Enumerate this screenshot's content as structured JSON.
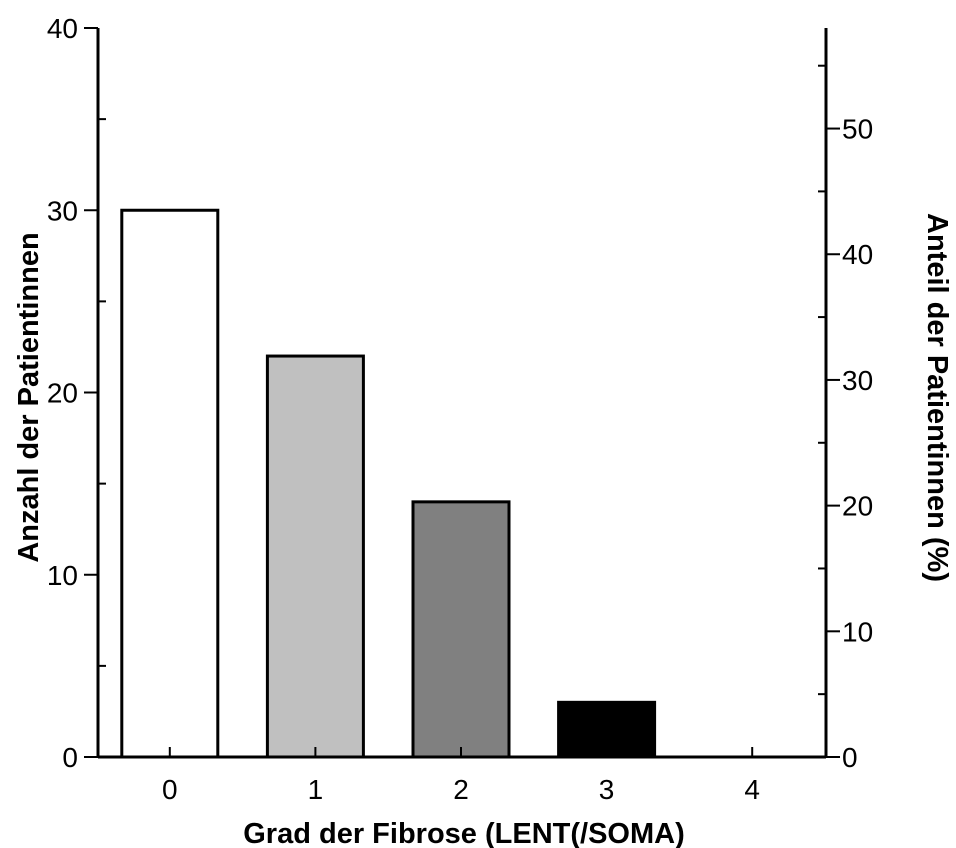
{
  "chart_data": {
    "type": "bar",
    "categories": [
      "0",
      "1",
      "2",
      "3",
      "4"
    ],
    "values": [
      30,
      22,
      14,
      3,
      0
    ],
    "bar_colors": [
      "#ffffff",
      "#c0c0c0",
      "#808080",
      "#000000",
      "#000000"
    ],
    "xlabel": "Grad der Fibrose (LENT(/SOMA)",
    "ylabel": "Anzahl der Patientinnen",
    "ylabel_right": "Anteil der Patientinnen (%)",
    "ylim": [
      0,
      40
    ],
    "ylim_right": [
      0,
      58
    ],
    "yticks": [
      "0",
      "10",
      "20",
      "30",
      "40"
    ],
    "yticks_right": [
      "0",
      "10",
      "20",
      "30",
      "40",
      "50"
    ],
    "grid": false
  }
}
